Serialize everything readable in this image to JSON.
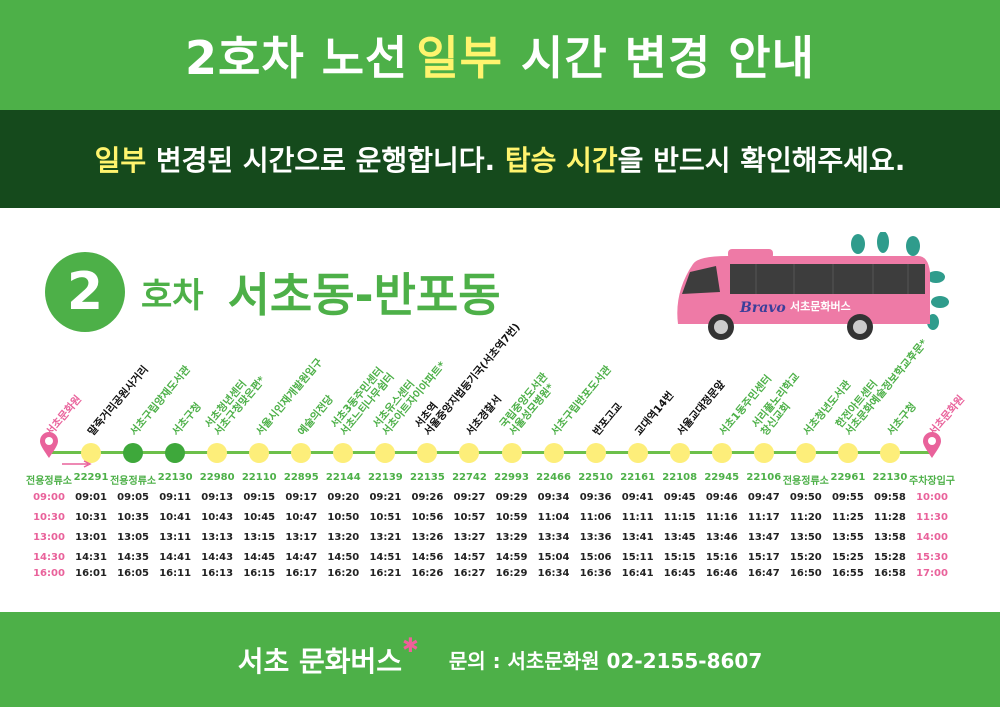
{
  "header": {
    "title_pre": "2호차 노선 ",
    "title_highlight": "일부",
    "title_post": " 시간 변경 안내"
  },
  "subheader": {
    "h1": "일부",
    "t1": " 변경된 시간으로 운행합니다. ",
    "h2": "탑승 시간",
    "t2": "을 반드시 확인해주세요."
  },
  "route": {
    "number": "2",
    "unit": "호차",
    "area": "서초동-반포동"
  },
  "bus": {
    "logo": "Bravo",
    "name": "서초문화버스"
  },
  "colors": {
    "green": "#4db048",
    "dark_green": "#154a1c",
    "yellow": "#fff46e",
    "pink": "#e9629b",
    "dot_yellow": "#fdee7a",
    "dot_green": "#3ea83b"
  },
  "stops": [
    {
      "name": [
        "서초문화원"
      ],
      "id": "전용정류소",
      "type": "terminal"
    },
    {
      "name": [
        "말죽거리공원사거리"
      ],
      "id": "22291",
      "type": "black"
    },
    {
      "name": [
        "서초구립양재도서관"
      ],
      "id": "전용정류소",
      "type": "green",
      "dot": "green"
    },
    {
      "name": [
        "서초구청"
      ],
      "id": "22130",
      "type": "green",
      "dot": "green"
    },
    {
      "name": [
        "서초청년센터",
        "서초구청맞은편*"
      ],
      "id": "22980",
      "type": "green"
    },
    {
      "name": [
        "서울시인재개발원입구"
      ],
      "id": "22110",
      "type": "green"
    },
    {
      "name": [
        "예술의전당"
      ],
      "id": "22895",
      "type": "green"
    },
    {
      "name": [
        "서초3동주민센터",
        "서초느티나무쉼터"
      ],
      "id": "22144",
      "type": "green"
    },
    {
      "name": [
        "서초유스센터",
        "서초아트자이아파트*"
      ],
      "id": "22139",
      "type": "green"
    },
    {
      "name": [
        "서초역",
        "서울중앙지법등기국(서초역7번)"
      ],
      "id": "22135",
      "type": "black"
    },
    {
      "name": [
        "서초경찰서"
      ],
      "id": "22742",
      "type": "black"
    },
    {
      "name": [
        "국립중앙도서관",
        "서울성모병원*"
      ],
      "id": "22993",
      "type": "green"
    },
    {
      "name": [
        "서초구립반포도서관"
      ],
      "id": "22466",
      "type": "green"
    },
    {
      "name": [
        "반포고교"
      ],
      "id": "22510",
      "type": "black"
    },
    {
      "name": [
        "교대역14번"
      ],
      "id": "22161",
      "type": "black"
    },
    {
      "name": [
        "서울교대정문앞"
      ],
      "id": "22108",
      "type": "black"
    },
    {
      "name": [
        "서초1동주민센터"
      ],
      "id": "22945",
      "type": "green"
    },
    {
      "name": [
        "서리풀노리학교",
        "창신교회"
      ],
      "id": "22106",
      "type": "green"
    },
    {
      "name": [
        "서초청년도서관"
      ],
      "id": "전용정류소",
      "type": "green"
    },
    {
      "name": [
        "한전아트센터",
        "서초문화예술정보학교후문*"
      ],
      "id": "22961",
      "type": "green"
    },
    {
      "name": [
        "서초구청"
      ],
      "id": "22130",
      "type": "green"
    },
    {
      "name": [
        "서초문화원"
      ],
      "id": "주차장입구",
      "type": "terminal"
    }
  ],
  "timetable": [
    [
      "09:00",
      "09:01",
      "09:05",
      "09:11",
      "09:13",
      "09:15",
      "09:17",
      "09:20",
      "09:21",
      "09:26",
      "09:27",
      "09:29",
      "09:34",
      "09:36",
      "09:41",
      "09:45",
      "09:46",
      "09:47",
      "09:50",
      "09:55",
      "09:58",
      "10:00"
    ],
    [
      "10:30",
      "10:31",
      "10:35",
      "10:41",
      "10:43",
      "10:45",
      "10:47",
      "10:50",
      "10:51",
      "10:56",
      "10:57",
      "10:59",
      "11:04",
      "11:06",
      "11:11",
      "11:15",
      "11:16",
      "11:17",
      "11:20",
      "11:25",
      "11:28",
      "11:30"
    ],
    [
      "13:00",
      "13:01",
      "13:05",
      "13:11",
      "13:13",
      "13:15",
      "13:17",
      "13:20",
      "13:21",
      "13:26",
      "13:27",
      "13:29",
      "13:34",
      "13:36",
      "13:41",
      "13:45",
      "13:46",
      "13:47",
      "13:50",
      "13:55",
      "13:58",
      "14:00"
    ],
    [
      "14:30",
      "14:31",
      "14:35",
      "14:41",
      "14:43",
      "14:45",
      "14:47",
      "14:50",
      "14:51",
      "14:56",
      "14:57",
      "14:59",
      "15:04",
      "15:06",
      "15:11",
      "15:15",
      "15:16",
      "15:17",
      "15:20",
      "15:25",
      "15:28",
      "15:30"
    ],
    [
      "16:00",
      "16:01",
      "16:05",
      "16:11",
      "16:13",
      "16:15",
      "16:17",
      "16:20",
      "16:21",
      "16:26",
      "16:27",
      "16:29",
      "16:34",
      "16:36",
      "16:41",
      "16:45",
      "16:46",
      "16:47",
      "16:50",
      "16:55",
      "16:58",
      "17:00"
    ]
  ],
  "footer": {
    "brand": "서초 문화버스",
    "contact": "문의 : 서초문화원 02-2155-8607"
  }
}
